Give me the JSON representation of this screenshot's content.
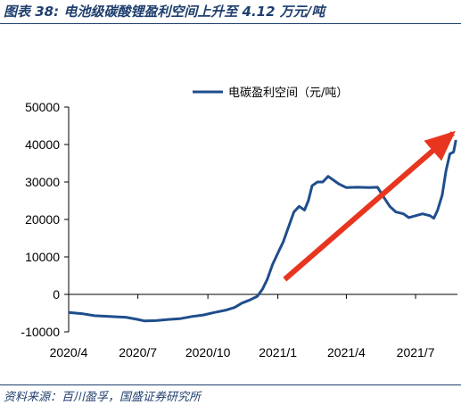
{
  "figure": {
    "title": "图表 38:  电池级碳酸锂盈利空间上升至 4.12 万元/吨",
    "source": "资料来源：百川盈孚，国盛证券研究所"
  },
  "chart_data": {
    "type": "line",
    "title": "",
    "xlabel": "",
    "ylabel": "",
    "ylim": [
      -10000,
      50000
    ],
    "yticks": [
      -10000,
      0,
      10000,
      20000,
      30000,
      40000,
      50000
    ],
    "x_tick_labels": [
      "2020/4",
      "2020/7",
      "2020/10",
      "2021/1",
      "2021/4",
      "2021/7"
    ],
    "x_tick_dates": [
      "2020-04-01",
      "2020-07-01",
      "2020-10-01",
      "2021-01-01",
      "2021-04-01",
      "2021-07-01"
    ],
    "xlim": [
      "2020-04-01",
      "2021-08-25"
    ],
    "grid": false,
    "legend_position": "top-right",
    "series": [
      {
        "name": "电碳盈利空间（元/吨）",
        "color": "#1f4e8c",
        "points": [
          [
            "2020-04-01",
            -4800
          ],
          [
            "2020-04-20",
            -5200
          ],
          [
            "2020-05-05",
            -5700
          ],
          [
            "2020-05-25",
            -5900
          ],
          [
            "2020-06-15",
            -6100
          ],
          [
            "2020-07-01",
            -6700
          ],
          [
            "2020-07-10",
            -7100
          ],
          [
            "2020-07-25",
            -7000
          ],
          [
            "2020-08-10",
            -6700
          ],
          [
            "2020-08-25",
            -6500
          ],
          [
            "2020-09-10",
            -5900
          ],
          [
            "2020-09-25",
            -5500
          ],
          [
            "2020-10-10",
            -4800
          ],
          [
            "2020-10-25",
            -4200
          ],
          [
            "2020-11-05",
            -3500
          ],
          [
            "2020-11-15",
            -2300
          ],
          [
            "2020-11-25",
            -1500
          ],
          [
            "2020-12-05",
            -500
          ],
          [
            "2020-12-12",
            1500
          ],
          [
            "2020-12-18",
            4000
          ],
          [
            "2020-12-25",
            8000
          ],
          [
            "2021-01-01",
            11000
          ],
          [
            "2021-01-08",
            14000
          ],
          [
            "2021-01-15",
            18000
          ],
          [
            "2021-01-22",
            22000
          ],
          [
            "2021-01-29",
            23500
          ],
          [
            "2021-02-05",
            22500
          ],
          [
            "2021-02-10",
            25000
          ],
          [
            "2021-02-15",
            29000
          ],
          [
            "2021-02-22",
            30000
          ],
          [
            "2021-03-01",
            30000
          ],
          [
            "2021-03-08",
            31500
          ],
          [
            "2021-03-15",
            30500
          ],
          [
            "2021-03-22",
            29500
          ],
          [
            "2021-04-01",
            28500
          ],
          [
            "2021-04-15",
            28600
          ],
          [
            "2021-05-01",
            28500
          ],
          [
            "2021-05-12",
            28600
          ],
          [
            "2021-05-20",
            26000
          ],
          [
            "2021-05-28",
            23500
          ],
          [
            "2021-06-05",
            22000
          ],
          [
            "2021-06-15",
            21500
          ],
          [
            "2021-06-22",
            20500
          ],
          [
            "2021-07-01",
            21000
          ],
          [
            "2021-07-10",
            21500
          ],
          [
            "2021-07-20",
            21000
          ],
          [
            "2021-07-25",
            20300
          ],
          [
            "2021-07-30",
            22500
          ],
          [
            "2021-08-05",
            26500
          ],
          [
            "2021-08-10",
            33000
          ],
          [
            "2021-08-15",
            37500
          ],
          [
            "2021-08-20",
            38000
          ],
          [
            "2021-08-23",
            41200
          ]
        ]
      }
    ],
    "annotations": [
      {
        "type": "arrow",
        "color": "#e8351f",
        "from": [
          "2021-01-10",
          4000
        ],
        "to": [
          "2021-08-19",
          43000
        ]
      }
    ]
  }
}
